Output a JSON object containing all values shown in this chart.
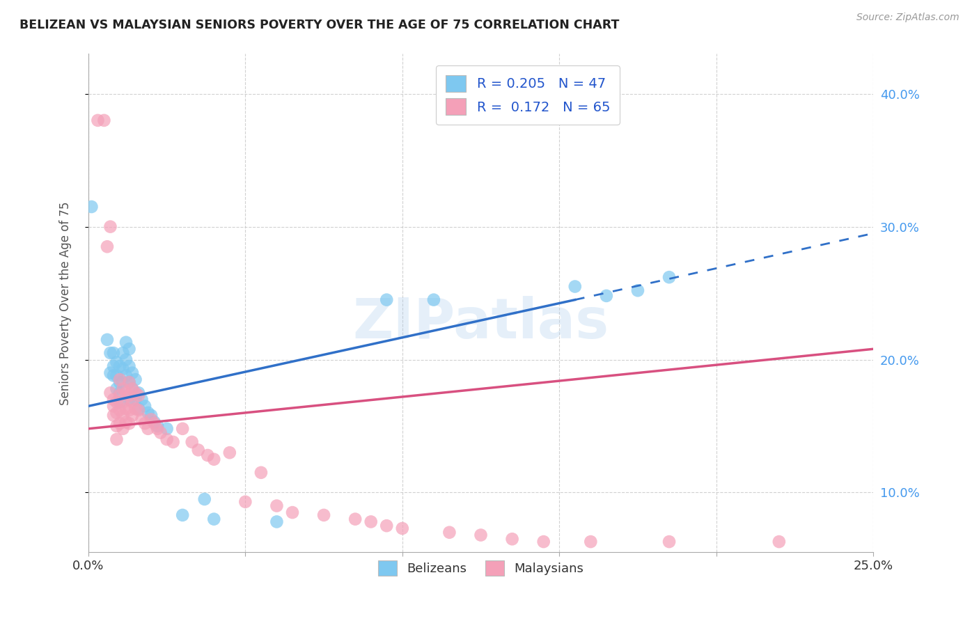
{
  "title": "BELIZEAN VS MALAYSIAN SENIORS POVERTY OVER THE AGE OF 75 CORRELATION CHART",
  "source": "Source: ZipAtlas.com",
  "ylabel": "Seniors Poverty Over the Age of 75",
  "xlabel_belizeans": "Belizeans",
  "xlabel_malaysians": "Malaysians",
  "watermark": "ZIPatlas",
  "blue_R": 0.205,
  "blue_N": 47,
  "pink_R": 0.172,
  "pink_N": 65,
  "x_min": 0.0,
  "x_max": 0.25,
  "y_min": 0.055,
  "y_max": 0.43,
  "blue_color": "#7EC8F0",
  "pink_color": "#F4A0B8",
  "blue_line_color": "#3070C8",
  "pink_line_color": "#D85080",
  "blue_scatter": [
    [
      0.001,
      0.315
    ],
    [
      0.006,
      0.215
    ],
    [
      0.007,
      0.205
    ],
    [
      0.007,
      0.19
    ],
    [
      0.008,
      0.205
    ],
    [
      0.008,
      0.195
    ],
    [
      0.008,
      0.188
    ],
    [
      0.009,
      0.198
    ],
    [
      0.009,
      0.188
    ],
    [
      0.009,
      0.178
    ],
    [
      0.01,
      0.195
    ],
    [
      0.01,
      0.183
    ],
    [
      0.01,
      0.175
    ],
    [
      0.01,
      0.168
    ],
    [
      0.011,
      0.205
    ],
    [
      0.011,
      0.193
    ],
    [
      0.011,
      0.183
    ],
    [
      0.012,
      0.213
    ],
    [
      0.012,
      0.2
    ],
    [
      0.012,
      0.188
    ],
    [
      0.013,
      0.208
    ],
    [
      0.013,
      0.195
    ],
    [
      0.013,
      0.183
    ],
    [
      0.013,
      0.17
    ],
    [
      0.014,
      0.19
    ],
    [
      0.014,
      0.178
    ],
    [
      0.015,
      0.185
    ],
    [
      0.015,
      0.17
    ],
    [
      0.016,
      0.175
    ],
    [
      0.016,
      0.163
    ],
    [
      0.017,
      0.17
    ],
    [
      0.018,
      0.165
    ],
    [
      0.019,
      0.16
    ],
    [
      0.02,
      0.158
    ],
    [
      0.021,
      0.153
    ],
    [
      0.022,
      0.15
    ],
    [
      0.025,
      0.148
    ],
    [
      0.03,
      0.083
    ],
    [
      0.037,
      0.095
    ],
    [
      0.04,
      0.08
    ],
    [
      0.06,
      0.078
    ],
    [
      0.095,
      0.245
    ],
    [
      0.11,
      0.245
    ],
    [
      0.155,
      0.255
    ],
    [
      0.165,
      0.248
    ],
    [
      0.175,
      0.252
    ],
    [
      0.185,
      0.262
    ]
  ],
  "pink_scatter": [
    [
      0.003,
      0.38
    ],
    [
      0.005,
      0.38
    ],
    [
      0.006,
      0.285
    ],
    [
      0.007,
      0.3
    ],
    [
      0.007,
      0.175
    ],
    [
      0.008,
      0.17
    ],
    [
      0.008,
      0.165
    ],
    [
      0.008,
      0.158
    ],
    [
      0.009,
      0.168
    ],
    [
      0.009,
      0.16
    ],
    [
      0.009,
      0.15
    ],
    [
      0.009,
      0.14
    ],
    [
      0.01,
      0.185
    ],
    [
      0.01,
      0.173
    ],
    [
      0.01,
      0.162
    ],
    [
      0.01,
      0.152
    ],
    [
      0.011,
      0.178
    ],
    [
      0.011,
      0.168
    ],
    [
      0.011,
      0.158
    ],
    [
      0.011,
      0.148
    ],
    [
      0.012,
      0.175
    ],
    [
      0.012,
      0.163
    ],
    [
      0.012,
      0.153
    ],
    [
      0.013,
      0.183
    ],
    [
      0.013,
      0.173
    ],
    [
      0.013,
      0.162
    ],
    [
      0.013,
      0.152
    ],
    [
      0.014,
      0.178
    ],
    [
      0.014,
      0.168
    ],
    [
      0.014,
      0.158
    ],
    [
      0.015,
      0.175
    ],
    [
      0.015,
      0.163
    ],
    [
      0.016,
      0.173
    ],
    [
      0.016,
      0.162
    ],
    [
      0.017,
      0.155
    ],
    [
      0.018,
      0.152
    ],
    [
      0.019,
      0.148
    ],
    [
      0.02,
      0.155
    ],
    [
      0.021,
      0.152
    ],
    [
      0.022,
      0.148
    ],
    [
      0.023,
      0.145
    ],
    [
      0.025,
      0.14
    ],
    [
      0.027,
      0.138
    ],
    [
      0.03,
      0.148
    ],
    [
      0.033,
      0.138
    ],
    [
      0.035,
      0.132
    ],
    [
      0.038,
      0.128
    ],
    [
      0.04,
      0.125
    ],
    [
      0.045,
      0.13
    ],
    [
      0.05,
      0.093
    ],
    [
      0.055,
      0.115
    ],
    [
      0.06,
      0.09
    ],
    [
      0.065,
      0.085
    ],
    [
      0.075,
      0.083
    ],
    [
      0.085,
      0.08
    ],
    [
      0.09,
      0.078
    ],
    [
      0.095,
      0.075
    ],
    [
      0.1,
      0.073
    ],
    [
      0.115,
      0.07
    ],
    [
      0.125,
      0.068
    ],
    [
      0.135,
      0.065
    ],
    [
      0.145,
      0.063
    ],
    [
      0.16,
      0.063
    ],
    [
      0.185,
      0.063
    ],
    [
      0.22,
      0.063
    ]
  ],
  "blue_trend_start_x": 0.0,
  "blue_trend_solid_end_x": 0.155,
  "blue_trend_dash_end_x": 0.25,
  "pink_trend_start_x": 0.0,
  "pink_trend_end_x": 0.25,
  "ytick_labels": [
    "10.0%",
    "20.0%",
    "30.0%",
    "40.0%"
  ],
  "ytick_values": [
    0.1,
    0.2,
    0.3,
    0.4
  ],
  "xtick_values": [
    0.0,
    0.05,
    0.1,
    0.15,
    0.2,
    0.25
  ],
  "xtick_labels": [
    "0.0%",
    "",
    "",
    "",
    "",
    "25.0%"
  ],
  "grid_color": "#CCCCCC",
  "background_color": "#FFFFFF",
  "title_color": "#222222",
  "right_axis_color": "#4499EE",
  "watermark_color": "#AACCEE"
}
